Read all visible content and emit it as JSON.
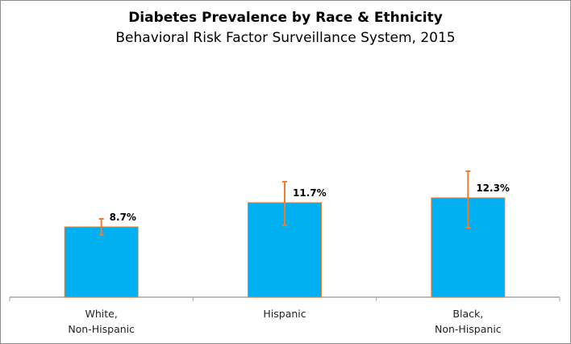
{
  "chart_data": {
    "type": "bar",
    "title": "Diabetes Prevalence by Race & Ethnicity",
    "subtitle": "Behavioral Risk Factor Surveillance System, 2015",
    "xlabel": "",
    "ylabel": "",
    "categories": [
      [
        "White,",
        "Non-Hispanic"
      ],
      [
        "Hispanic"
      ],
      [
        "Black,",
        "Non-Hispanic"
      ]
    ],
    "values": [
      8.7,
      11.7,
      12.3
    ],
    "data_labels": [
      "8.7%",
      "11.7%",
      "12.3%"
    ],
    "error_bars": [
      {
        "low": 7.7,
        "high": 9.7
      },
      {
        "low": 8.9,
        "high": 14.3
      },
      {
        "low": 8.6,
        "high": 15.6
      }
    ],
    "ylim": [
      0,
      20
    ],
    "grid": false,
    "legend": "none",
    "colors": {
      "bar_fill": "#00b0f0",
      "bar_outline": "#ed7d31",
      "error_bar": "#ed7d31",
      "axis": "#a6a6a6",
      "frame": "#8c8c8c"
    }
  }
}
